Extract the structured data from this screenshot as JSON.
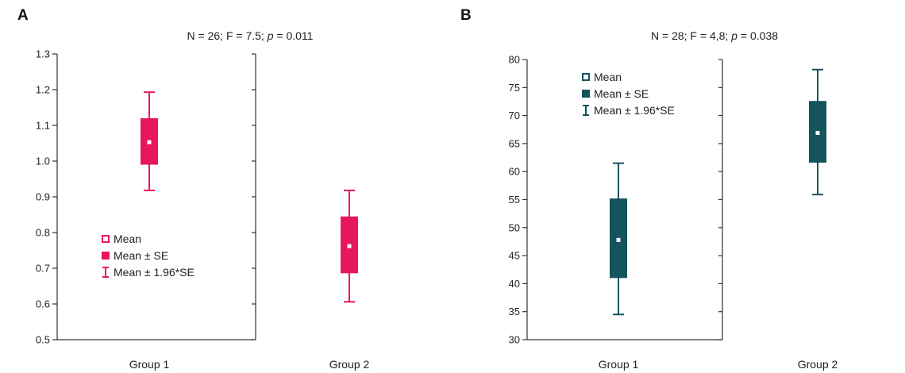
{
  "chart_data": [
    {
      "type": "box",
      "panel": "A",
      "title": "N = 26; F = 7.5; p = 0.011",
      "title_parts": [
        "N = 26; F = 7.5; ",
        "p",
        " = 0.011"
      ],
      "color": "#E8175D",
      "ylim": [
        0.5,
        1.3
      ],
      "yticks": [
        "0.5",
        "0.6",
        "0.7",
        "0.8",
        "0.9",
        "1.0",
        "1.1",
        "1.2",
        "1.3"
      ],
      "categories": [
        "Group 1",
        "Group 2"
      ],
      "series": [
        {
          "category": "Group 1",
          "mean": 1.053,
          "se_low": 0.99,
          "se_high": 1.12,
          "ci_low": 0.918,
          "ci_high": 1.193
        },
        {
          "category": "Group 2",
          "mean": 0.762,
          "se_low": 0.686,
          "se_high": 0.845,
          "ci_low": 0.606,
          "ci_high": 0.918
        }
      ],
      "legend": [
        "Mean",
        "Mean ± SE",
        "Mean ± 1.96*SE"
      ],
      "legend_placement": "lower-left of first column"
    },
    {
      "type": "box",
      "panel": "B",
      "title": "N = 28; F = 4,8; p = 0.038",
      "title_parts": [
        "N = 28; F = 4,8; ",
        "p",
        " = 0.038"
      ],
      "color": "#14545C",
      "ylim": [
        30,
        80
      ],
      "yticks": [
        "30",
        "35",
        "40",
        "45",
        "50",
        "55",
        "60",
        "65",
        "70",
        "75",
        "80"
      ],
      "categories": [
        "Group 1",
        "Group 2"
      ],
      "series": [
        {
          "category": "Group 1",
          "mean": 47.8,
          "se_low": 41.0,
          "se_high": 55.2,
          "ci_low": 34.5,
          "ci_high": 61.5
        },
        {
          "category": "Group 2",
          "mean": 66.9,
          "se_low": 61.6,
          "se_high": 72.6,
          "ci_low": 55.9,
          "ci_high": 78.2
        }
      ],
      "legend": [
        "Mean",
        "Mean ± SE",
        "Mean ± 1.96*SE"
      ],
      "legend_placement": "top-left of first column"
    }
  ]
}
